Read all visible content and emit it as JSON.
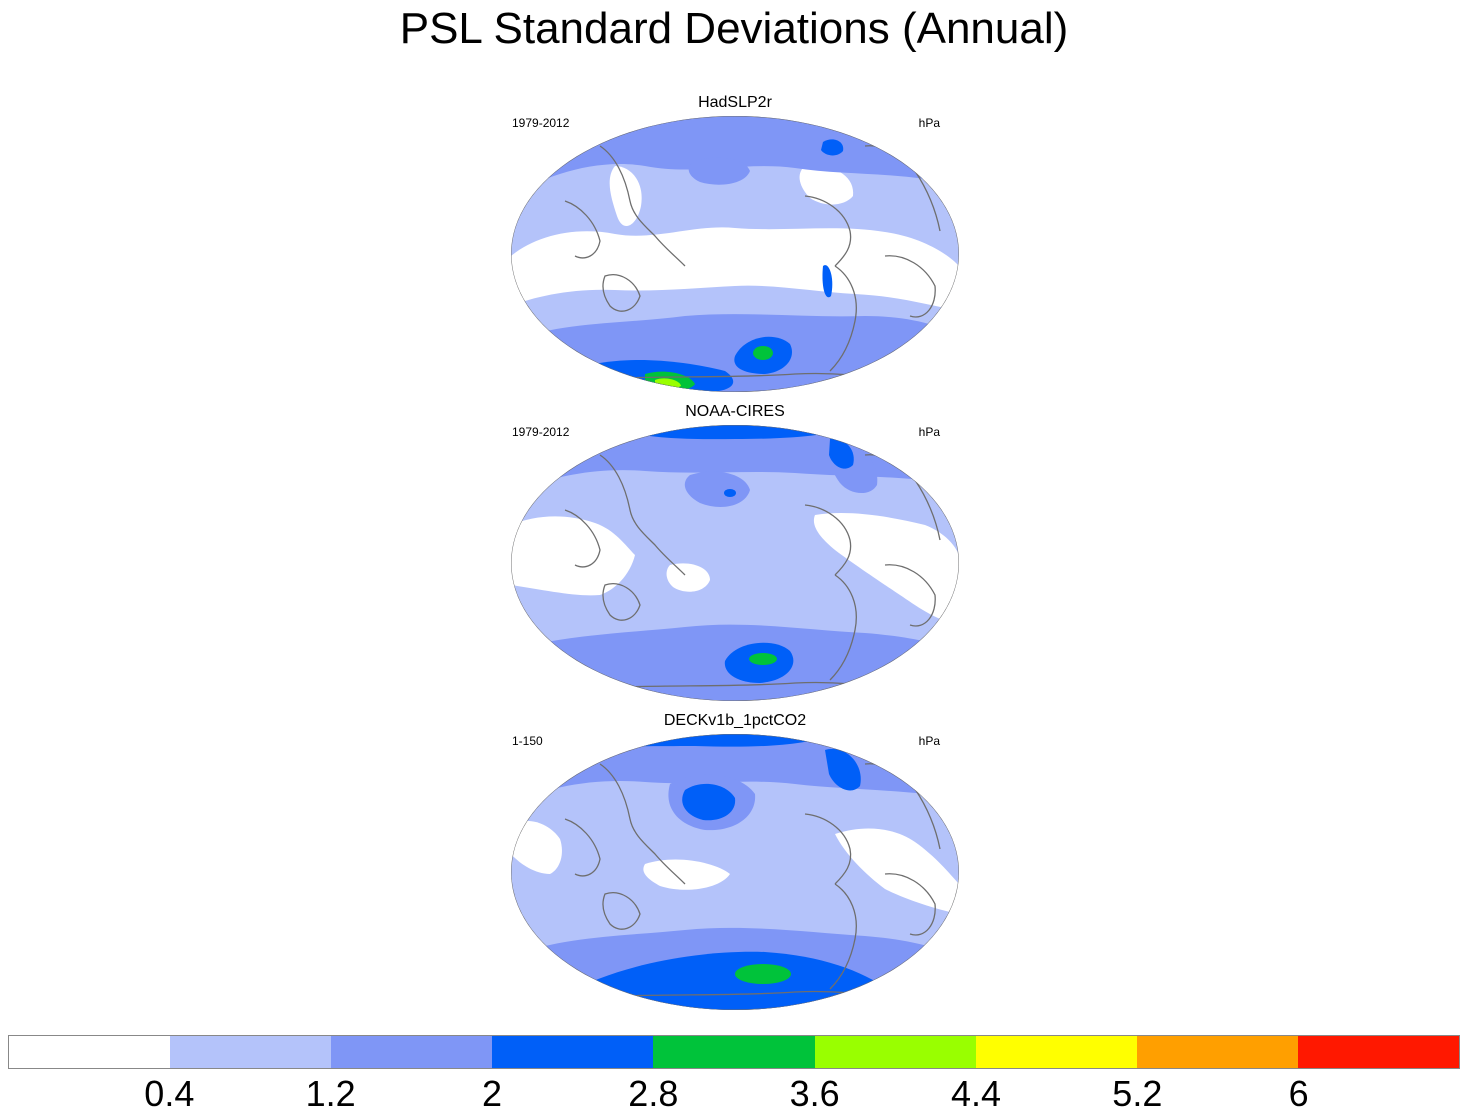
{
  "title": "PSL Standard Deviations (Annual)",
  "palette": {
    "bin0": "#ffffff",
    "bin1": "#b4c3fa",
    "bin2": "#7f96f6",
    "bin3": "#005ff8",
    "bin4": "#00c33a",
    "bin5": "#99ff00",
    "bin6": "#ffff00",
    "bin7": "#ff9f00",
    "bin8": "#ff1800",
    "coast": "#6e6e6e"
  },
  "panels": [
    {
      "title": "HadSLP2r",
      "period": "1979-2012",
      "units": "hPa"
    },
    {
      "title": "NOAA-CIRES",
      "period": "1979-2012",
      "units": "hPa"
    },
    {
      "title": "DECKv1b_1pctCO2",
      "period": "1-150",
      "units": "hPa"
    }
  ],
  "colorbar": {
    "labels": [
      "0.4",
      "1.2",
      "2",
      "2.8",
      "3.6",
      "4.4",
      "5.2",
      "6"
    ],
    "colors": [
      "#ffffff",
      "#b4c3fa",
      "#7f96f6",
      "#005ff8",
      "#00c33a",
      "#99ff00",
      "#ffff00",
      "#ff9f00",
      "#ff1800"
    ]
  }
}
